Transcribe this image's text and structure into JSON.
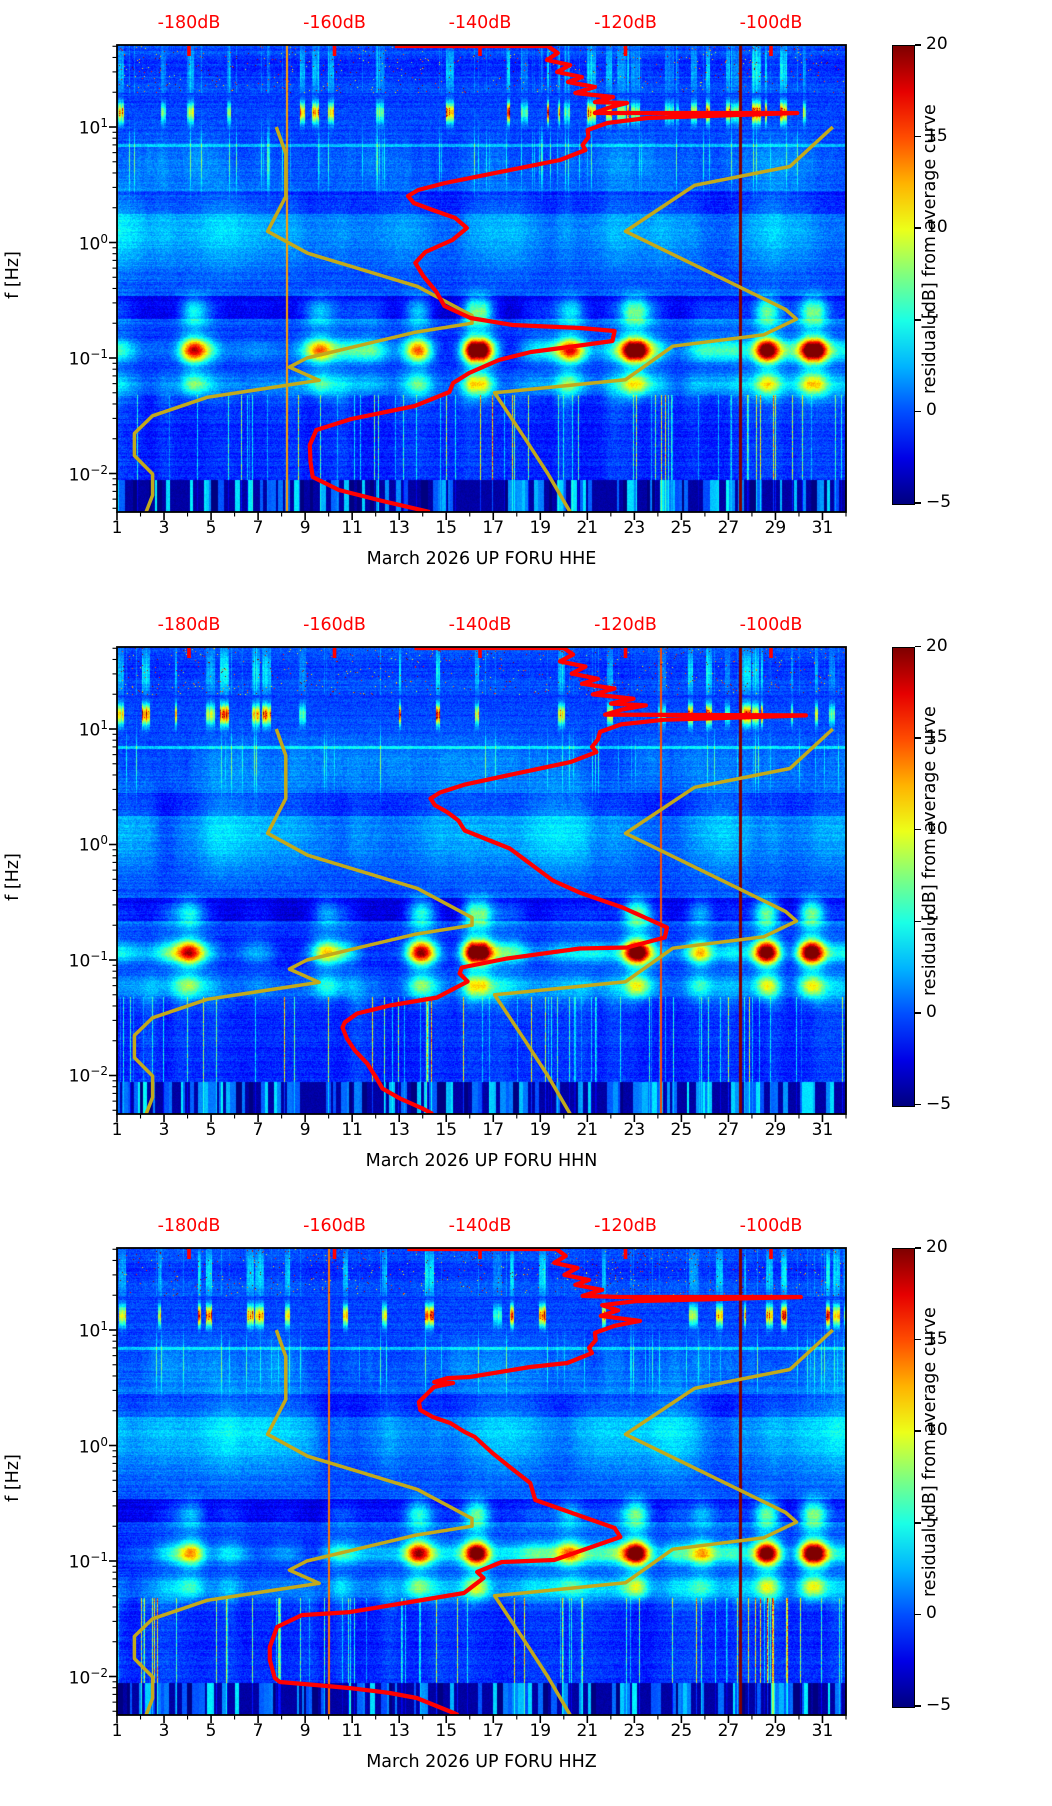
{
  "chart_data": {
    "type": "heatmap",
    "description": "Three seismic power spectral density residual spectrograms (jet colormap) with overlaid average PSD curve (red) and Peterson NLNM/NHNM model curves (dark yellow). X: day of March 2026, Y: frequency log scale, top axis: absolute PSD level in dB.",
    "x_axis": {
      "tick_days": [
        "1",
        "3",
        "5",
        "7",
        "9",
        "11",
        "13",
        "15",
        "17",
        "19",
        "21",
        "23",
        "25",
        "27",
        "29",
        "31"
      ],
      "tick_day_values": [
        1,
        3,
        5,
        7,
        9,
        11,
        13,
        15,
        17,
        19,
        21,
        23,
        25,
        27,
        29,
        31
      ],
      "minor_day_values": [
        2,
        4,
        6,
        8,
        10,
        12,
        14,
        16,
        18,
        20,
        22,
        24,
        26,
        28,
        30,
        32
      ],
      "range_days": [
        1,
        32
      ]
    },
    "y_axis": {
      "label": "f [Hz]",
      "ticks": [
        {
          "base": "10",
          "exp": "1",
          "logf": 1
        },
        {
          "base": "10",
          "exp": "0",
          "logf": 0
        },
        {
          "base": "10",
          "exp": "−1",
          "logf": -1
        },
        {
          "base": "10",
          "exp": "−2",
          "logf": -2
        }
      ],
      "range_log10_hz": [
        -2.333,
        1.71
      ]
    },
    "top_axis": {
      "labels": [
        "-180dB",
        "-160dB",
        "-140dB",
        "-120dB",
        "-100dB"
      ],
      "tick_db": [
        -180,
        -160,
        -140,
        -120,
        -100
      ],
      "range_db": [
        -189.9,
        -89.8
      ],
      "color": "#ff0000"
    },
    "colorbar": {
      "label": "residual [dB] from average curve",
      "tick_labels": [
        "20",
        "15",
        "10",
        "5",
        "0",
        "−5"
      ],
      "tick_values": [
        20,
        15,
        10,
        5,
        0,
        -5
      ],
      "range": [
        -5,
        20
      ]
    },
    "panels": [
      {
        "id": "HHE",
        "title": "March 2026 UP FORU  HHE",
        "seed": 11,
        "thin_lines": [
          {
            "day": 27.5,
            "amp": 24,
            "w": 1.5
          },
          {
            "day": 8.2,
            "amp": 13,
            "w": 1
          }
        ],
        "hot_days": [
          [
            16.3,
            1.0
          ],
          [
            23.0,
            0.9
          ],
          [
            28.6,
            1.0
          ],
          [
            30.6,
            0.95
          ],
          [
            13.8,
            0.6
          ],
          [
            4.2,
            0.5
          ],
          [
            9.6,
            0.4
          ],
          [
            20.3,
            0.45
          ]
        ],
        "red_curve": [
          [
            -151.7,
            1.701
          ],
          [
            -130.7,
            1.701
          ],
          [
            -129.3,
            1.641
          ],
          [
            -130.8,
            1.58
          ],
          [
            -127.6,
            1.537
          ],
          [
            -129.4,
            1.476
          ],
          [
            -126.0,
            1.433
          ],
          [
            -127.9,
            1.39
          ],
          [
            -124.2,
            1.346
          ],
          [
            -126.9,
            1.294
          ],
          [
            -121.7,
            1.26
          ],
          [
            -124.2,
            1.216
          ],
          [
            -119.8,
            1.208
          ],
          [
            -122.4,
            1.165
          ],
          [
            -124.2,
            1.121
          ],
          [
            -96.4,
            1.121
          ],
          [
            -117.0,
            1.078
          ],
          [
            -122.5,
            1.035
          ],
          [
            -125.2,
            0.974
          ],
          [
            -125.1,
            0.913
          ],
          [
            -125.9,
            0.844
          ],
          [
            -125.5,
            0.801
          ],
          [
            -129.0,
            0.714
          ],
          [
            -137.3,
            0.61
          ],
          [
            -144.8,
            0.515
          ],
          [
            -148.5,
            0.455
          ],
          [
            -149.9,
            0.403
          ],
          [
            -149.1,
            0.342
          ],
          [
            -146.5,
            0.281
          ],
          [
            -143.4,
            0.212
          ],
          [
            -141.8,
            0.126
          ],
          [
            -143.8,
            0.022
          ],
          [
            -147.5,
            -0.082
          ],
          [
            -148.9,
            -0.177
          ],
          [
            -147.8,
            -0.29
          ],
          [
            -146.0,
            -0.428
          ],
          [
            -144.9,
            -0.55
          ],
          [
            -141.3,
            -0.654
          ],
          [
            -135.5,
            -0.714
          ],
          [
            -126.2,
            -0.74
          ],
          [
            -121.5,
            -0.766
          ],
          [
            -121.8,
            -0.853
          ],
          [
            -127.8,
            -0.905
          ],
          [
            -133.0,
            -0.948
          ],
          [
            -137.4,
            -1.017
          ],
          [
            -141.5,
            -1.13
          ],
          [
            -143.7,
            -1.216
          ],
          [
            -144.2,
            -1.294
          ],
          [
            -149.0,
            -1.416
          ],
          [
            -157.7,
            -1.528
          ],
          [
            -162.5,
            -1.623
          ],
          [
            -163.4,
            -1.753
          ],
          [
            -163.3,
            -1.9
          ],
          [
            -163.0,
            -2.03
          ],
          [
            -159.4,
            -2.143
          ],
          [
            -153.4,
            -2.238
          ],
          [
            -146.9,
            -2.333
          ]
        ]
      },
      {
        "id": "HHN",
        "title": "March 2026 UP FORU  HHN",
        "seed": 22,
        "thin_lines": [
          {
            "day": 27.5,
            "amp": 24,
            "w": 1.5
          },
          {
            "day": 24.1,
            "amp": 15,
            "w": 1
          }
        ],
        "hot_days": [
          [
            16.3,
            0.95
          ],
          [
            23.1,
            0.9
          ],
          [
            28.6,
            1.0
          ],
          [
            30.5,
            0.9
          ],
          [
            13.9,
            0.65
          ],
          [
            4.1,
            0.55
          ],
          [
            25.8,
            0.5
          ],
          [
            9.8,
            0.4
          ]
        ],
        "red_curve": [
          [
            -149.0,
            1.701
          ],
          [
            -128.5,
            1.701
          ],
          [
            -127.2,
            1.645
          ],
          [
            -129.0,
            1.585
          ],
          [
            -125.5,
            1.54
          ],
          [
            -127.4,
            1.48
          ],
          [
            -123.8,
            1.435
          ],
          [
            -126.0,
            1.392
          ],
          [
            -121.5,
            1.35
          ],
          [
            -124.5,
            1.3
          ],
          [
            -118.9,
            1.262
          ],
          [
            -122.0,
            1.22
          ],
          [
            -117.2,
            1.205
          ],
          [
            -120.5,
            1.168
          ],
          [
            -122.8,
            1.125
          ],
          [
            -95.2,
            1.118
          ],
          [
            -114.8,
            1.08
          ],
          [
            -120.6,
            1.04
          ],
          [
            -123.5,
            0.975
          ],
          [
            -123.8,
            0.91
          ],
          [
            -124.6,
            0.845
          ],
          [
            -124.0,
            0.8
          ],
          [
            -127.5,
            0.715
          ],
          [
            -135.2,
            0.612
          ],
          [
            -142.0,
            0.52
          ],
          [
            -145.5,
            0.45
          ],
          [
            -146.8,
            0.398
          ],
          [
            -146.2,
            0.34
          ],
          [
            -144.5,
            0.28
          ],
          [
            -143.0,
            0.21
          ],
          [
            -142.1,
            0.121
          ],
          [
            -135.9,
            -0.035
          ],
          [
            -130.0,
            -0.312
          ],
          [
            -126.3,
            -0.416
          ],
          [
            -120.4,
            -0.545
          ],
          [
            -114.3,
            -0.719
          ],
          [
            -114.6,
            -0.805
          ],
          [
            -119.8,
            -0.892
          ],
          [
            -126.3,
            -0.9
          ],
          [
            -136.3,
            -0.987
          ],
          [
            -142.5,
            -1.065
          ],
          [
            -142.8,
            -1.117
          ],
          [
            -141.7,
            -1.186
          ],
          [
            -145.9,
            -1.325
          ],
          [
            -152.4,
            -1.394
          ],
          [
            -156.9,
            -1.463
          ],
          [
            -158.6,
            -1.541
          ],
          [
            -158.9,
            -1.584
          ],
          [
            -158.3,
            -1.68
          ],
          [
            -157.2,
            -1.784
          ],
          [
            -155.5,
            -1.896
          ],
          [
            -154.2,
            -2.026
          ],
          [
            -153.4,
            -2.113
          ],
          [
            -151.0,
            -2.199
          ],
          [
            -147.9,
            -2.286
          ],
          [
            -146.5,
            -2.333
          ]
        ]
      },
      {
        "id": "HHZ",
        "title": "March 2026 UP FORU  HHZ",
        "seed": 33,
        "thin_lines": [
          {
            "day": 27.5,
            "amp": 24,
            "w": 1.5
          },
          {
            "day": 10.0,
            "amp": 14,
            "w": 1
          }
        ],
        "hot_days": [
          [
            16.3,
            1.0
          ],
          [
            23.1,
            0.85
          ],
          [
            28.6,
            1.0
          ],
          [
            30.6,
            0.95
          ],
          [
            13.8,
            0.6
          ],
          [
            4.2,
            0.5
          ],
          [
            20.2,
            0.4
          ],
          [
            25.9,
            0.45
          ]
        ],
        "red_curve": [
          [
            -150.0,
            1.701
          ],
          [
            -129.5,
            1.701
          ],
          [
            -128.2,
            1.642
          ],
          [
            -129.8,
            1.582
          ],
          [
            -126.6,
            1.538
          ],
          [
            -128.4,
            1.477
          ],
          [
            -125.0,
            1.434
          ],
          [
            -126.9,
            1.391
          ],
          [
            -123.2,
            1.347
          ],
          [
            -125.9,
            1.295
          ],
          [
            -120.7,
            1.286
          ],
          [
            -95.9,
            1.286
          ],
          [
            -118.5,
            1.25
          ],
          [
            -123.2,
            1.215
          ],
          [
            -121.0,
            1.17
          ],
          [
            -123.4,
            1.122
          ],
          [
            -118.0,
            1.079
          ],
          [
            -121.5,
            1.036
          ],
          [
            -124.2,
            0.975
          ],
          [
            -124.1,
            0.913
          ],
          [
            -125.0,
            0.845
          ],
          [
            -124.6,
            0.8
          ],
          [
            -128.0,
            0.714
          ],
          [
            -133.1,
            0.68
          ],
          [
            -141.4,
            0.593
          ],
          [
            -144.5,
            0.584
          ],
          [
            -146.3,
            0.55
          ],
          [
            -143.7,
            0.541
          ],
          [
            -146.3,
            0.507
          ],
          [
            -148.4,
            0.377
          ],
          [
            -148.2,
            0.307
          ],
          [
            -146.5,
            0.247
          ],
          [
            -144.1,
            0.195
          ],
          [
            -142.1,
            0.117
          ],
          [
            -140.7,
            0.074
          ],
          [
            -138.3,
            -0.065
          ],
          [
            -135.9,
            -0.186
          ],
          [
            -133.1,
            -0.325
          ],
          [
            -132.4,
            -0.472
          ],
          [
            -121.5,
            -0.714
          ],
          [
            -120.7,
            -0.792
          ],
          [
            -129.8,
            -0.991
          ],
          [
            -137.0,
            -1.009
          ],
          [
            -140.4,
            -1.095
          ],
          [
            -139.5,
            -1.147
          ],
          [
            -142.2,
            -1.277
          ],
          [
            -149.6,
            -1.355
          ],
          [
            -157.9,
            -1.442
          ],
          [
            -164.5,
            -1.468
          ],
          [
            -167.9,
            -1.571
          ],
          [
            -168.9,
            -1.745
          ],
          [
            -168.9,
            -1.857
          ],
          [
            -168.2,
            -2.013
          ],
          [
            -167.5,
            -2.048
          ],
          [
            -162.4,
            -2.074
          ],
          [
            -157.9,
            -2.1
          ],
          [
            -152.4,
            -2.143
          ],
          [
            -148.7,
            -2.186
          ],
          [
            -143.6,
            -2.316
          ],
          [
            -143.0,
            -2.333
          ]
        ]
      }
    ],
    "models": {
      "nlnm": [
        [
          -168.0,
          1.0
        ],
        [
          -166.7,
          0.77
        ],
        [
          -166.7,
          0.398
        ],
        [
          -169.2,
          0.097
        ],
        [
          -163.7,
          -0.093
        ],
        [
          -148.6,
          -0.38
        ],
        [
          -141.1,
          -0.633
        ],
        [
          -141.1,
          -0.699
        ],
        [
          -149.0,
          -0.778
        ],
        [
          -163.8,
          -1.0
        ],
        [
          -166.2,
          -1.079
        ],
        [
          -162.1,
          -1.193
        ],
        [
          -177.5,
          -1.34
        ],
        [
          -185.0,
          -1.5
        ],
        [
          -187.5,
          -1.653
        ],
        [
          -187.5,
          -1.845
        ],
        [
          -185.0,
          -2.004
        ],
        [
          -185.0,
          -2.188
        ],
        [
          -185.9,
          -2.333
        ]
      ],
      "nhnm": [
        [
          -91.5,
          1.0
        ],
        [
          -97.4,
          0.658
        ],
        [
          -110.5,
          0.495
        ],
        [
          -120.0,
          0.097
        ],
        [
          -98.0,
          -0.58
        ],
        [
          -96.5,
          -0.663
        ],
        [
          -101.0,
          -0.799
        ],
        [
          -113.5,
          -0.898
        ],
        [
          -120.0,
          -1.188
        ],
        [
          -138.0,
          -1.301
        ],
        [
          -133.8,
          -1.699
        ],
        [
          -130.7,
          -2.0
        ],
        [
          -127.6,
          -2.333
        ]
      ]
    },
    "style": {
      "red_curve_color": "#ff0000",
      "model_curve_color": "#c2a91c",
      "spine_color": "#000000",
      "top_label_color": "#ff0000"
    }
  }
}
